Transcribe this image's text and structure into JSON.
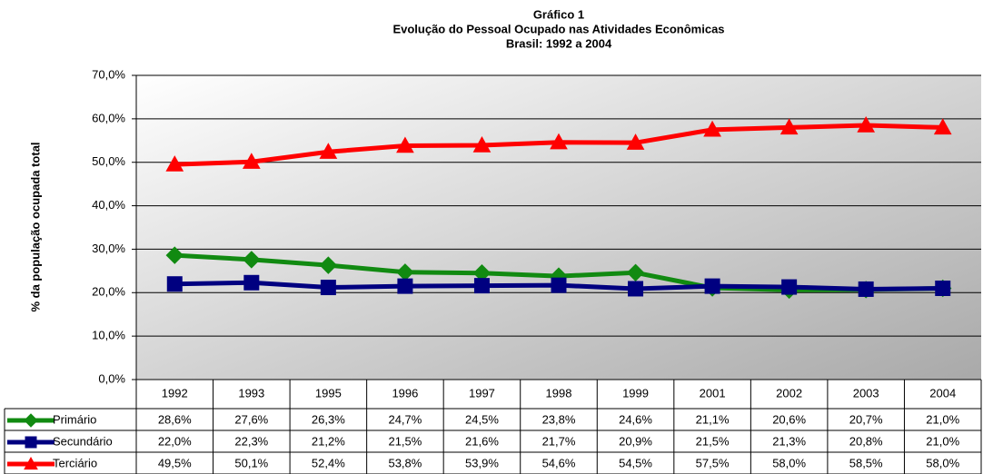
{
  "chart_data": {
    "type": "line",
    "title": [
      "Gráfico 1",
      "Evolução do Pessoal Ocupado nas Atividades Econômicas",
      "Brasil: 1992 a 2004"
    ],
    "y_label": "% da população ocupada total",
    "categories": [
      "1992",
      "1993",
      "1995",
      "1996",
      "1997",
      "1998",
      "1999",
      "2001",
      "2002",
      "2003",
      "2004"
    ],
    "series": [
      {
        "name": "Primário",
        "color": "#118a11",
        "marker": "diamond",
        "values": [
          28.6,
          27.6,
          26.3,
          24.7,
          24.5,
          23.8,
          24.6,
          21.1,
          20.6,
          20.7,
          21.0
        ],
        "value_labels": [
          "28,6%",
          "27,6%",
          "26,3%",
          "24,7%",
          "24,5%",
          "23,8%",
          "24,6%",
          "21,1%",
          "20,6%",
          "20,7%",
          "21,0%"
        ]
      },
      {
        "name": "Secundário",
        "color": "#000080",
        "marker": "square",
        "values": [
          22.0,
          22.3,
          21.2,
          21.5,
          21.6,
          21.7,
          20.9,
          21.5,
          21.3,
          20.8,
          21.0
        ],
        "value_labels": [
          "22,0%",
          "22,3%",
          "21,2%",
          "21,5%",
          "21,6%",
          "21,7%",
          "20,9%",
          "21,5%",
          "21,3%",
          "20,8%",
          "21,0%"
        ]
      },
      {
        "name": "Terciário",
        "color": "#ff0000",
        "marker": "triangle",
        "values": [
          49.5,
          50.1,
          52.4,
          53.8,
          53.9,
          54.6,
          54.5,
          57.5,
          58.0,
          58.5,
          58.0
        ],
        "value_labels": [
          "49,5%",
          "50,1%",
          "52,4%",
          "53,8%",
          "53,9%",
          "54,6%",
          "54,5%",
          "57,5%",
          "58,0%",
          "58,5%",
          "58,0%"
        ]
      }
    ],
    "ylim": [
      0,
      70
    ],
    "yticks": [
      {
        "value": 0,
        "label": "0,0%"
      },
      {
        "value": 10,
        "label": "10,0%"
      },
      {
        "value": 20,
        "label": "20,0%"
      },
      {
        "value": 30,
        "label": "30,0%"
      },
      {
        "value": 40,
        "label": "40,0%"
      },
      {
        "value": 50,
        "label": "50,0%"
      },
      {
        "value": 60,
        "label": "60,0%"
      },
      {
        "value": 70,
        "label": "70,0%"
      }
    ],
    "grid": true
  }
}
